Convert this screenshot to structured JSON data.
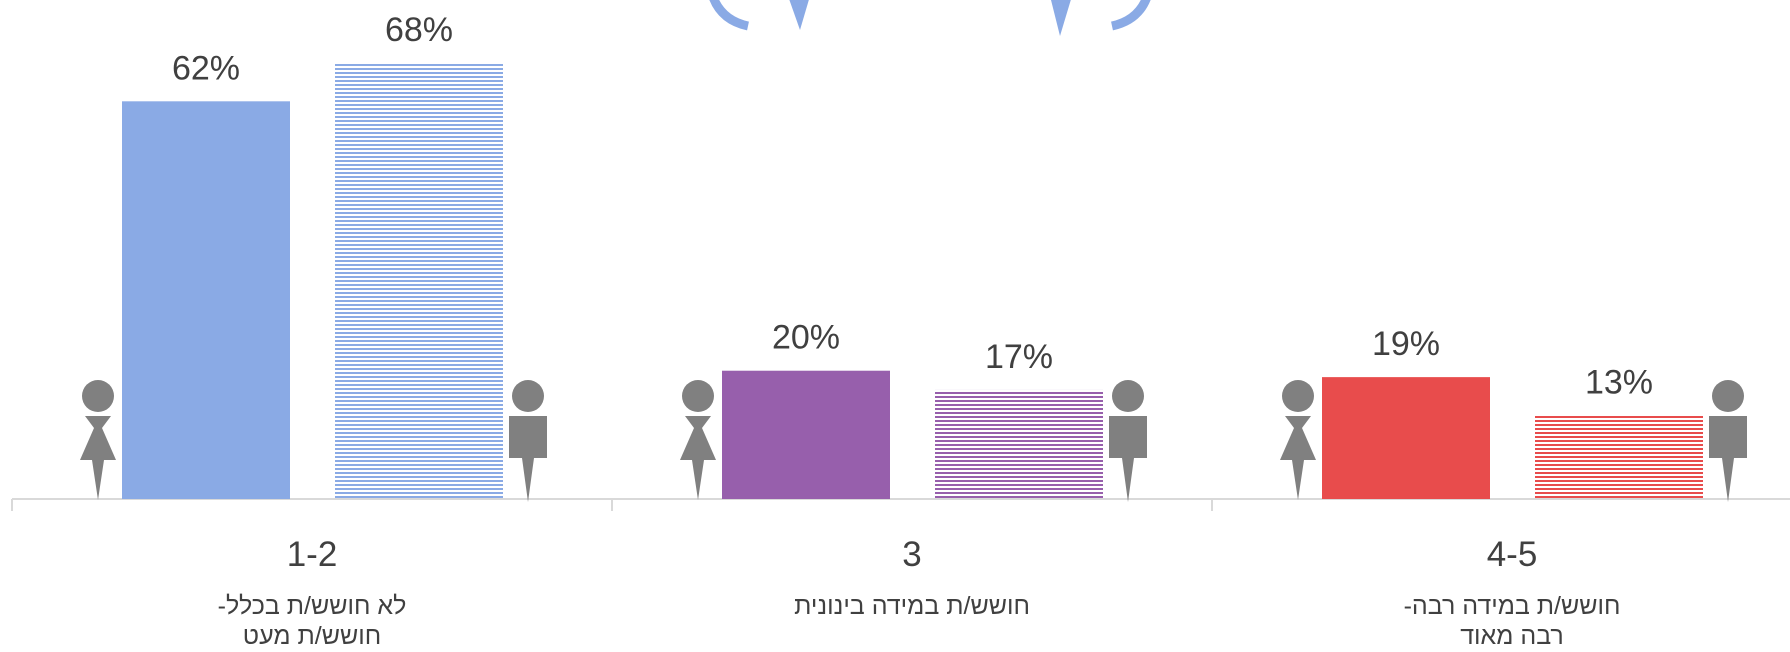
{
  "chart_data": {
    "type": "bar",
    "categories": [
      "1-2",
      "3",
      "4-5"
    ],
    "category_descriptions": [
      [
        "לא חושש/ת בכלל-",
        "חושש/ת מעט"
      ],
      [
        "חושש/ת במידה בינונית"
      ],
      [
        "חושש/ת במידה רבה-",
        "רבה מאוד"
      ]
    ],
    "colors": [
      "#8aaae5",
      "#975fac",
      "#e84c4c"
    ],
    "series": [
      {
        "pattern": "solid",
        "values": [
          62,
          20,
          19
        ],
        "value_labels": [
          "62%",
          "20%",
          "19%"
        ]
      },
      {
        "pattern": "striped",
        "values": [
          68,
          17,
          13
        ],
        "value_labels": [
          "68%",
          "17%",
          "13%"
        ]
      }
    ],
    "ylim": [
      0,
      70
    ]
  }
}
